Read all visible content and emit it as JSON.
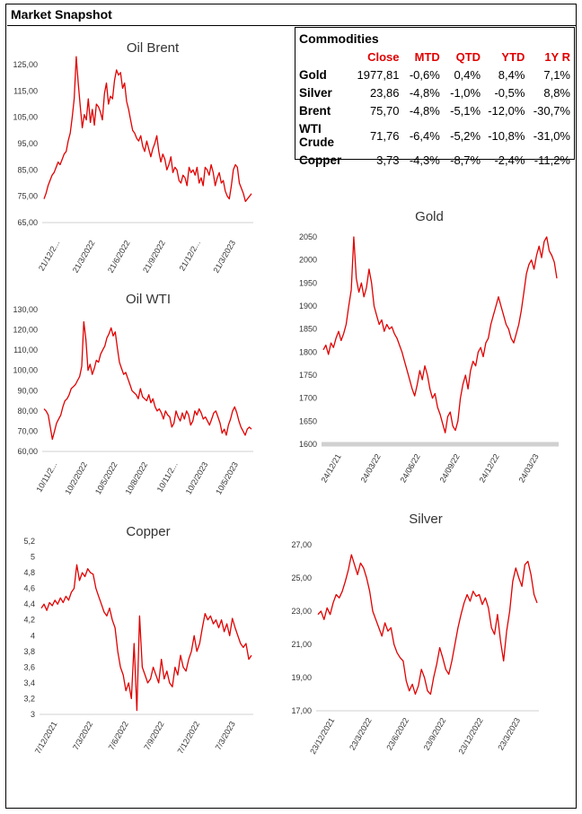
{
  "page": {
    "title": "Market Snapshot"
  },
  "commodities": {
    "title": "Commodities",
    "headers": [
      "Close",
      "MTD",
      "QTD",
      "YTD",
      "1Y R"
    ],
    "rows": [
      {
        "name": "Gold",
        "close": "1977,81",
        "mtd": "-0,6%",
        "qtd": "0,4%",
        "ytd": "8,4%",
        "r1y": "7,1%"
      },
      {
        "name": "Silver",
        "close": "23,86",
        "mtd": "-4,8%",
        "qtd": "-1,0%",
        "ytd": "-0,5%",
        "r1y": "8,8%"
      },
      {
        "name": "Brent",
        "close": "75,70",
        "mtd": "-4,8%",
        "qtd": "-5,1%",
        "ytd": "-12,0%",
        "r1y": "-30,7%"
      },
      {
        "name": "WTI Crude",
        "close": "71,76",
        "mtd": "-6,4%",
        "qtd": "-5,2%",
        "ytd": "-10,8%",
        "r1y": "-31,0%"
      },
      {
        "name": "Copper",
        "close": "3,73",
        "mtd": "-4,3%",
        "qtd": "-8,7%",
        "ytd": "-2,4%",
        "r1y": "-11,2%"
      }
    ]
  },
  "colors": {
    "line": "#e00000",
    "axis": "#d0d0d0",
    "header": "#e00000"
  },
  "chart_data": [
    {
      "id": "brent",
      "type": "line",
      "title": "Oil Brent",
      "ylim": [
        65,
        125
      ],
      "yticks": [
        "65,00",
        "75,00",
        "85,00",
        "95,00",
        "105,00",
        "115,00",
        "125,00"
      ],
      "xticks": [
        "21/12/2...",
        "21/3/2022",
        "21/6/2022",
        "21/9/2022",
        "21/12/2...",
        "21/3/2023"
      ],
      "legend": "none",
      "grid": false,
      "values": [
        74,
        76,
        79,
        81,
        83,
        84,
        86,
        88,
        87,
        89,
        91,
        92,
        96,
        99,
        105,
        112,
        128,
        118,
        109,
        101,
        106,
        104,
        112,
        103,
        108,
        102,
        110,
        109,
        107,
        104,
        114,
        118,
        110,
        113,
        112,
        119,
        123,
        121,
        122,
        116,
        118,
        111,
        108,
        104,
        100,
        99,
        97,
        96,
        98,
        94,
        92,
        96,
        93,
        90,
        93,
        95,
        98,
        92,
        88,
        91,
        89,
        85,
        87,
        90,
        84,
        86,
        85,
        81,
        80,
        83,
        82,
        79,
        86,
        84,
        85,
        83,
        86,
        80,
        82,
        79,
        86,
        85,
        83,
        87,
        84,
        79,
        82,
        84,
        80,
        81,
        77,
        75,
        74,
        79,
        85,
        87,
        86,
        80,
        78,
        76,
        73,
        74,
        75,
        76
      ]
    },
    {
      "id": "wti",
      "type": "line",
      "title": "Oil WTI",
      "ylim": [
        60,
        130
      ],
      "yticks": [
        "60,00",
        "70,00",
        "80,00",
        "90,00",
        "100,00",
        "110,00",
        "120,00",
        "130,00"
      ],
      "xticks": [
        "10/11/2...",
        "10/2/2022",
        "10/5/2022",
        "10/8/2022",
        "10/11/2...",
        "10/2/2023",
        "10/5/2023"
      ],
      "legend": "none",
      "grid": false,
      "values": [
        81,
        80,
        78,
        72,
        66,
        70,
        74,
        76,
        78,
        82,
        85,
        86,
        88,
        91,
        92,
        93,
        95,
        97,
        102,
        124,
        115,
        100,
        103,
        98,
        101,
        105,
        104,
        108,
        110,
        112,
        116,
        118,
        121,
        117,
        119,
        111,
        104,
        101,
        98,
        99,
        96,
        93,
        90,
        89,
        88,
        86,
        91,
        87,
        86,
        85,
        88,
        84,
        86,
        82,
        80,
        81,
        79,
        76,
        80,
        78,
        77,
        72,
        74,
        80,
        77,
        75,
        79,
        76,
        80,
        78,
        73,
        75,
        80,
        78,
        81,
        79,
        76,
        77,
        75,
        73,
        76,
        79,
        80,
        77,
        74,
        69,
        71,
        68,
        73,
        76,
        80,
        82,
        79,
        75,
        72,
        70,
        68,
        71,
        72,
        71
      ]
    },
    {
      "id": "gold",
      "type": "line",
      "title": "Gold",
      "ylim": [
        1600,
        2050
      ],
      "yticks": [
        "1600",
        "1650",
        "1700",
        "1750",
        "1800",
        "1850",
        "1900",
        "1950",
        "2000",
        "2050"
      ],
      "xticks": [
        "24/12/21",
        "24/03/22",
        "24/06/22",
        "24/09/22",
        "24/12/22",
        "24/03/23"
      ],
      "legend": "none",
      "grid": false,
      "values": [
        1805,
        1815,
        1795,
        1820,
        1810,
        1830,
        1845,
        1825,
        1840,
        1860,
        1900,
        1935,
        2050,
        1960,
        1930,
        1950,
        1920,
        1940,
        1980,
        1950,
        1900,
        1880,
        1860,
        1870,
        1845,
        1860,
        1850,
        1855,
        1840,
        1830,
        1815,
        1800,
        1780,
        1760,
        1740,
        1720,
        1705,
        1730,
        1760,
        1740,
        1770,
        1750,
        1720,
        1700,
        1710,
        1680,
        1665,
        1645,
        1625,
        1660,
        1670,
        1640,
        1630,
        1650,
        1700,
        1730,
        1750,
        1720,
        1760,
        1780,
        1770,
        1800,
        1810,
        1790,
        1820,
        1830,
        1860,
        1880,
        1900,
        1920,
        1900,
        1880,
        1860,
        1850,
        1830,
        1820,
        1840,
        1860,
        1890,
        1930,
        1970,
        1990,
        2000,
        1980,
        2010,
        2030,
        2005,
        2040,
        2050,
        2020,
        2010,
        1995,
        1960
      ]
    },
    {
      "id": "copper",
      "type": "line",
      "title": "Copper",
      "ylim": [
        3,
        5.2
      ],
      "yticks": [
        "3",
        "3,2",
        "3,4",
        "3,6",
        "3,8",
        "4",
        "4,2",
        "4,4",
        "4,6",
        "4,8",
        "5",
        "5,2"
      ],
      "xticks": [
        "7/12/2021",
        "7/3/2022",
        "7/6/2022",
        "7/9/2022",
        "7/12/2022",
        "7/3/2023"
      ],
      "legend": "none",
      "grid": false,
      "values": [
        4.35,
        4.4,
        4.32,
        4.42,
        4.38,
        4.45,
        4.4,
        4.48,
        4.42,
        4.5,
        4.45,
        4.55,
        4.6,
        4.9,
        4.7,
        4.8,
        4.75,
        4.85,
        4.8,
        4.78,
        4.6,
        4.5,
        4.4,
        4.3,
        4.25,
        4.35,
        4.2,
        4.1,
        3.8,
        3.6,
        3.5,
        3.3,
        3.4,
        3.2,
        3.9,
        3.05,
        4.25,
        3.6,
        3.5,
        3.4,
        3.45,
        3.6,
        3.5,
        3.4,
        3.7,
        3.45,
        3.55,
        3.4,
        3.35,
        3.6,
        3.5,
        3.75,
        3.6,
        3.55,
        3.7,
        3.8,
        4.0,
        3.8,
        3.9,
        4.1,
        4.28,
        4.2,
        4.25,
        4.15,
        4.2,
        4.1,
        4.2,
        4.05,
        4.15,
        4.0,
        4.22,
        4.1,
        4.0,
        3.9,
        3.85,
        3.9,
        3.7,
        3.75
      ]
    },
    {
      "id": "silver",
      "type": "line",
      "title": "Silver",
      "ylim": [
        17,
        27
      ],
      "yticks": [
        "17,00",
        "19,00",
        "21,00",
        "23,00",
        "25,00",
        "27,00"
      ],
      "xticks": [
        "23/12/2021",
        "23/3/2022",
        "23/6/2022",
        "23/9/2022",
        "23/12/2022",
        "23/3/2023"
      ],
      "legend": "none",
      "grid": false,
      "values": [
        22.8,
        23.0,
        22.5,
        23.2,
        22.8,
        23.5,
        24.0,
        23.8,
        24.2,
        24.8,
        25.5,
        26.4,
        25.8,
        25.2,
        25.9,
        25.6,
        25.0,
        24.2,
        23.0,
        22.5,
        22.0,
        21.5,
        22.3,
        21.8,
        22.0,
        21.0,
        20.5,
        20.2,
        20.0,
        18.8,
        18.2,
        18.6,
        18.0,
        18.5,
        19.5,
        19.0,
        18.2,
        18.0,
        19.0,
        19.8,
        20.8,
        20.2,
        19.5,
        19.2,
        20.0,
        21.0,
        22.0,
        22.8,
        23.5,
        24.0,
        23.6,
        24.2,
        23.9,
        24.0,
        23.4,
        23.8,
        23.2,
        22.0,
        21.6,
        22.8,
        21.2,
        20.0,
        21.8,
        23.0,
        24.8,
        25.6,
        25.0,
        24.5,
        25.8,
        26.0,
        25.2,
        24.0,
        23.5
      ]
    }
  ]
}
